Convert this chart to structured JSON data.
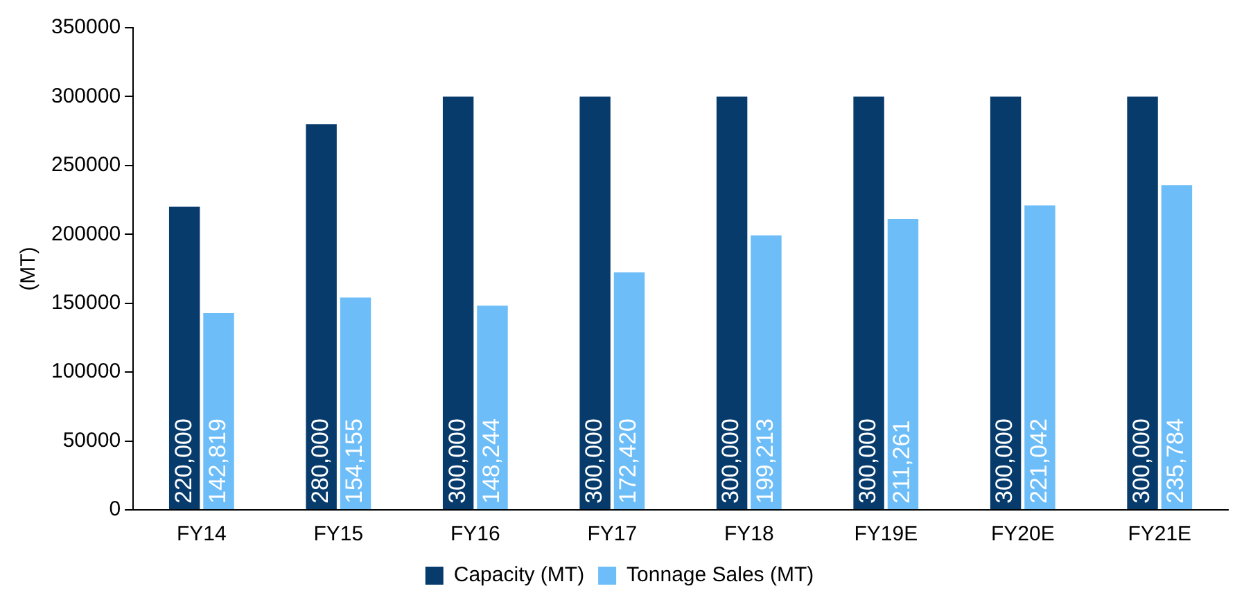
{
  "chart_data": {
    "type": "bar",
    "ylabel": "(MT)",
    "categories": [
      "FY14",
      "FY15",
      "FY16",
      "FY17",
      "FY18",
      "FY19E",
      "FY20E",
      "FY21E"
    ],
    "series": [
      {
        "name": "Capacity (MT)",
        "color": "#073b6c",
        "values": [
          220000,
          280000,
          300000,
          300000,
          300000,
          300000,
          300000,
          300000
        ],
        "value_labels": [
          "220,000",
          "280,000",
          "300,000",
          "300,000",
          "300,000",
          "300,000",
          "300,000",
          "300,000"
        ]
      },
      {
        "name": "Tonnage Sales (MT)",
        "color": "#6cbdf8",
        "values": [
          142819,
          154155,
          148244,
          172420,
          199213,
          211261,
          221042,
          235784
        ],
        "value_labels": [
          "142,819",
          "154,155",
          "148,244",
          "172,420",
          "199,213",
          "211,261",
          "221,042",
          "235,784"
        ]
      }
    ],
    "ylim": [
      0,
      350000
    ],
    "yticks": [
      0,
      50000,
      100000,
      150000,
      200000,
      250000,
      300000,
      350000
    ],
    "grid": false,
    "legend": "bottom"
  }
}
